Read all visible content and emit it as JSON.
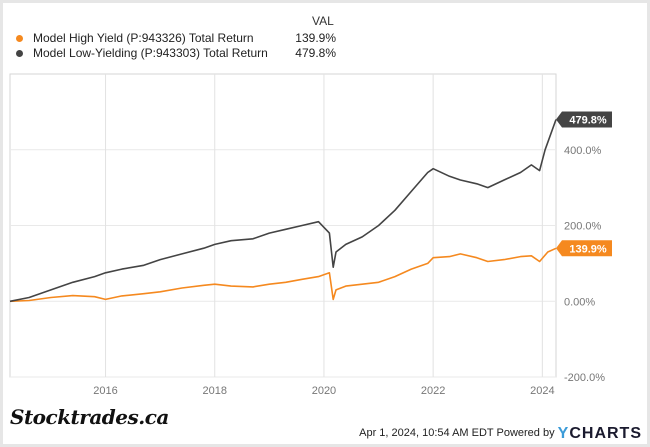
{
  "legend": {
    "header": "VAL",
    "items": [
      {
        "label": "Model High Yield (P:943326) Total Return",
        "value": "139.9%",
        "color": "#f5891f"
      },
      {
        "label": "Model Low-Yielding (P:943303) Total Return",
        "value": "479.8%",
        "color": "#444444"
      }
    ]
  },
  "footer": {
    "brand": "Stocktrades.ca",
    "timestamp": "Apr 1, 2024, 10:54 AM EDT",
    "powered_by": "Powered by",
    "ycharts_y": "Y",
    "ycharts_rest": "CHARTS"
  },
  "chart_data": {
    "type": "line",
    "title": "",
    "xlabel": "",
    "ylabel": "",
    "xlim": [
      2014.25,
      2024.25
    ],
    "ylim": [
      -200,
      600
    ],
    "x_ticks": [
      2016,
      2018,
      2020,
      2022,
      2024
    ],
    "x_tick_labels": [
      "2016",
      "2018",
      "2020",
      "2022",
      "2024"
    ],
    "y_ticks": [
      400,
      200,
      0,
      -200
    ],
    "y_tick_labels": [
      "400.0%",
      "200.0%",
      "0.00%",
      "-200.0%"
    ],
    "grid": true,
    "series": [
      {
        "name": "Model High Yield (P:943326) Total Return",
        "color": "#f5891f",
        "end_label": "139.9%",
        "x": [
          2014.25,
          2014.6,
          2015.0,
          2015.4,
          2015.8,
          2016.0,
          2016.3,
          2016.7,
          2017.0,
          2017.4,
          2017.8,
          2018.0,
          2018.3,
          2018.7,
          2019.0,
          2019.3,
          2019.6,
          2019.9,
          2020.1,
          2020.17,
          2020.22,
          2020.4,
          2020.7,
          2021.0,
          2021.3,
          2021.6,
          2021.9,
          2022.0,
          2022.3,
          2022.5,
          2022.8,
          2023.0,
          2023.3,
          2023.6,
          2023.8,
          2023.95,
          2024.1,
          2024.25
        ],
        "y": [
          0,
          2,
          10,
          15,
          12,
          5,
          14,
          20,
          25,
          35,
          42,
          45,
          40,
          38,
          45,
          50,
          58,
          65,
          75,
          5,
          30,
          40,
          45,
          50,
          65,
          85,
          100,
          115,
          118,
          125,
          115,
          105,
          110,
          118,
          120,
          105,
          130,
          139.9
        ]
      },
      {
        "name": "Model Low-Yielding (P:943303) Total Return",
        "color": "#444444",
        "end_label": "479.8%",
        "x": [
          2014.25,
          2014.6,
          2015.0,
          2015.4,
          2015.8,
          2016.0,
          2016.3,
          2016.7,
          2017.0,
          2017.4,
          2017.8,
          2018.0,
          2018.3,
          2018.7,
          2019.0,
          2019.3,
          2019.6,
          2019.9,
          2020.1,
          2020.17,
          2020.22,
          2020.4,
          2020.7,
          2021.0,
          2021.3,
          2021.6,
          2021.9,
          2022.0,
          2022.3,
          2022.5,
          2022.8,
          2023.0,
          2023.3,
          2023.6,
          2023.8,
          2023.95,
          2024.05,
          2024.25
        ],
        "y": [
          0,
          10,
          30,
          50,
          65,
          75,
          85,
          95,
          110,
          125,
          140,
          150,
          160,
          165,
          180,
          190,
          200,
          210,
          180,
          90,
          130,
          150,
          170,
          200,
          240,
          290,
          340,
          350,
          330,
          320,
          310,
          300,
          320,
          340,
          360,
          345,
          400,
          479.8
        ]
      }
    ]
  }
}
